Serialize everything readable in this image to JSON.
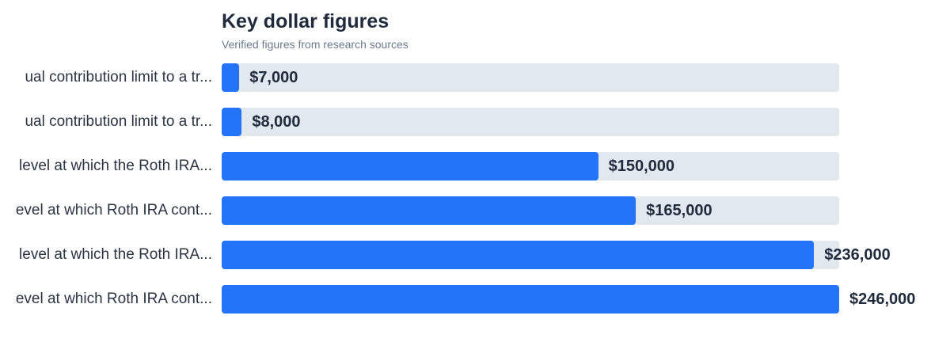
{
  "chart_data": {
    "type": "bar",
    "orientation": "horizontal",
    "title": "Key dollar figures",
    "subtitle": "Verified figures from research sources",
    "xlim": [
      0,
      246000
    ],
    "grid": false,
    "categories": [
      "ual contribution limit to a tr...",
      "ual contribution limit to a tr...",
      "level at which the Roth IRA...",
      "evel at which Roth IRA cont...",
      "level at which the Roth IRA...",
      "evel at which Roth IRA cont..."
    ],
    "values": [
      7000,
      8000,
      150000,
      165000,
      236000,
      246000
    ],
    "value_labels": [
      "$7,000",
      "$8,000",
      "$150,000",
      "$165,000",
      "$236,000",
      "$246,000"
    ],
    "colors": {
      "bar": "#2374f7",
      "track": "#e2e8f0",
      "text": "#1f2a3c"
    }
  }
}
